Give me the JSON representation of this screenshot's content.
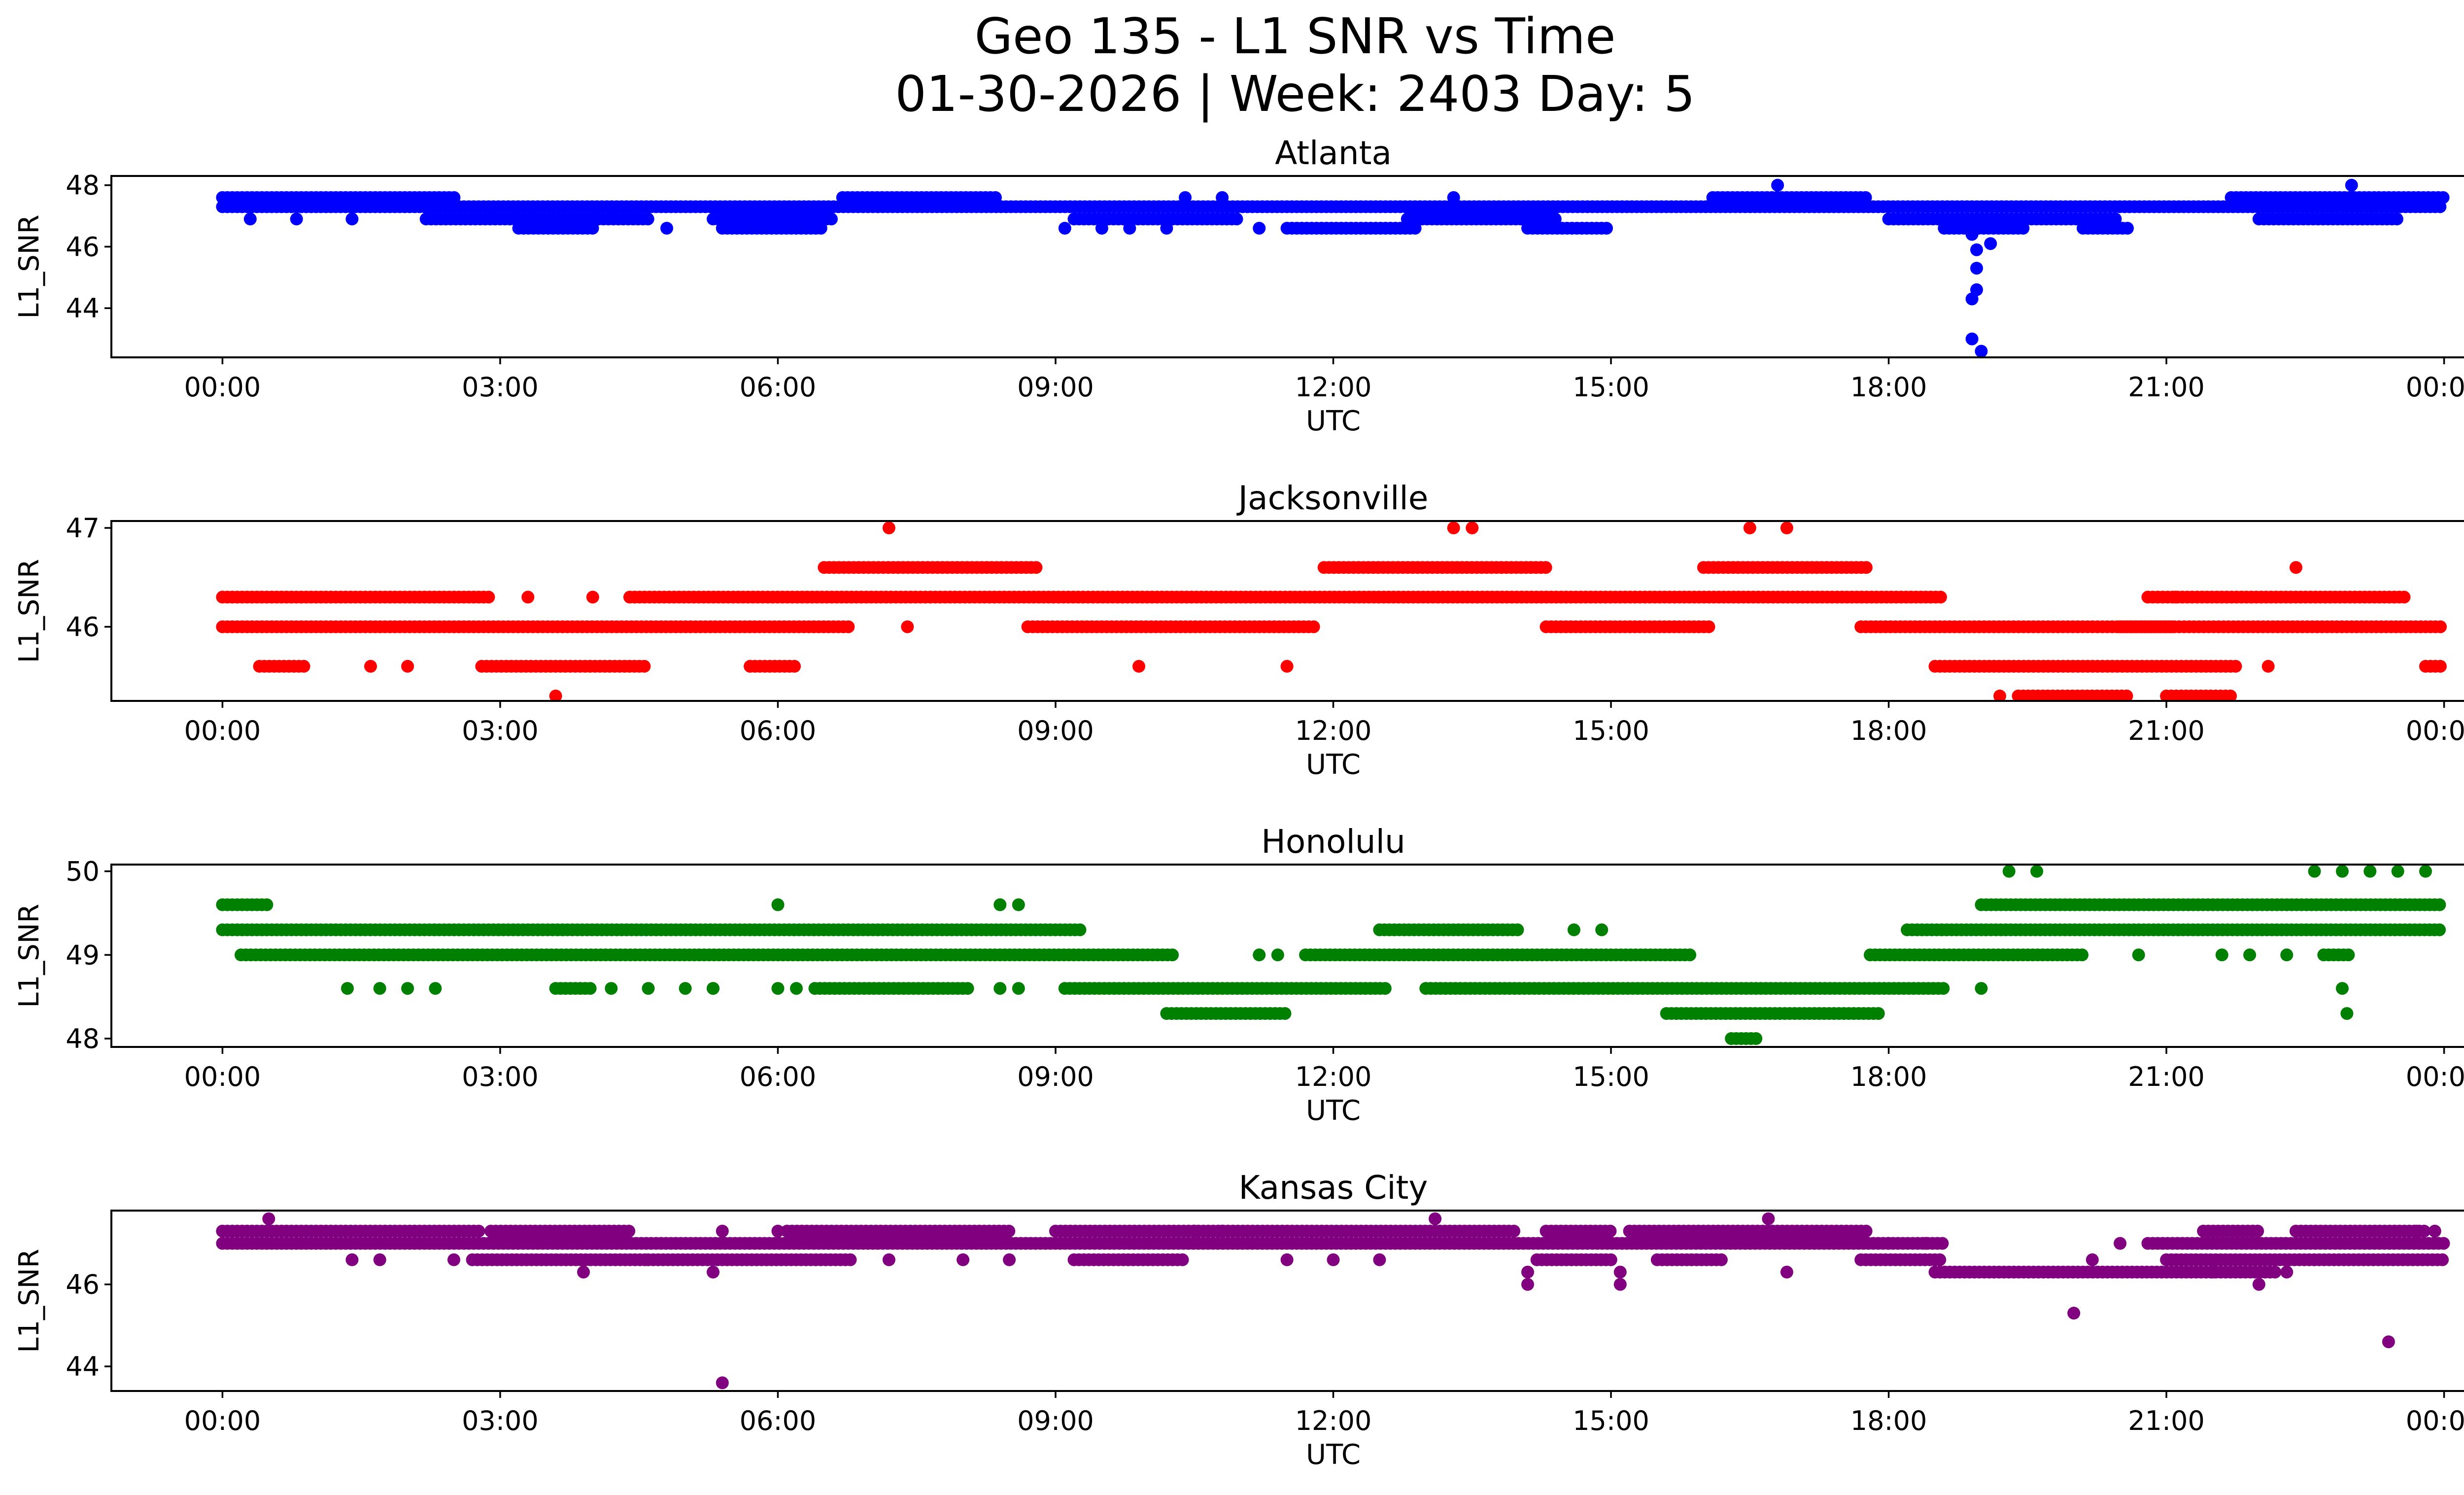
{
  "figure": {
    "title_line1": "Geo 135 - L1 SNR vs Time",
    "title_line2": "01-30-2026 | Week: 2403 Day: 5"
  },
  "chart_data": [
    {
      "type": "scatter",
      "title": "Atlanta",
      "xlabel": "UTC",
      "ylabel": "L1_SNR",
      "color": "#0000ff",
      "xlim_hours": [
        -1.2,
        25.2
      ],
      "ylim": [
        42.4,
        48.3
      ],
      "yticks": [
        44,
        46,
        48
      ],
      "xticks": [
        "00:00",
        "03:00",
        "06:00",
        "09:00",
        "12:00",
        "15:00",
        "18:00",
        "21:00",
        "00:00"
      ],
      "levels": [
        {
          "y": 47.6,
          "ranges": [
            [
              0.0,
              2.55
            ],
            [
              6.7,
              8.4
            ],
            [
              16.1,
              17.8
            ],
            [
              21.7,
              24.0
            ]
          ]
        },
        {
          "y": 47.3,
          "ranges": [
            [
              0.0,
              24.0
            ]
          ]
        },
        {
          "y": 46.9,
          "ranges": [
            [
              2.2,
              4.6
            ],
            [
              5.3,
              6.6
            ],
            [
              9.2,
              11.0
            ],
            [
              12.8,
              14.4
            ],
            [
              18.0,
              20.5
            ],
            [
              22.0,
              23.5
            ]
          ]
        },
        {
          "y": 46.6,
          "ranges": [
            [
              3.2,
              4.0
            ],
            [
              5.4,
              6.5
            ],
            [
              11.5,
              12.9
            ],
            [
              14.1,
              15.0
            ],
            [
              18.6,
              19.5
            ],
            [
              20.1,
              20.6
            ]
          ]
        }
      ],
      "points": [
        [
          0.3,
          46.9
        ],
        [
          0.8,
          46.9
        ],
        [
          1.4,
          46.9
        ],
        [
          4.8,
          46.6
        ],
        [
          9.1,
          46.6
        ],
        [
          9.5,
          46.6
        ],
        [
          9.8,
          46.6
        ],
        [
          10.2,
          46.6
        ],
        [
          10.4,
          47.6
        ],
        [
          10.8,
          47.6
        ],
        [
          11.2,
          46.6
        ],
        [
          13.3,
          47.6
        ],
        [
          16.8,
          48.0
        ],
        [
          18.9,
          46.4
        ],
        [
          18.95,
          45.9
        ],
        [
          18.95,
          45.3
        ],
        [
          18.9,
          44.3
        ],
        [
          18.95,
          44.6
        ],
        [
          18.9,
          43.0
        ],
        [
          19.0,
          42.6
        ],
        [
          19.1,
          46.1
        ],
        [
          23.0,
          48.0
        ]
      ]
    },
    {
      "type": "scatter",
      "title": "Jacksonville",
      "xlabel": "UTC",
      "ylabel": "L1_SNR",
      "color": "#ff0000",
      "xlim_hours": [
        -1.2,
        25.2
      ],
      "ylim": [
        45.25,
        47.07
      ],
      "yticks": [
        46,
        47
      ],
      "xticks": [
        "00:00",
        "03:00",
        "06:00",
        "09:00",
        "12:00",
        "15:00",
        "18:00",
        "21:00",
        "00:00"
      ],
      "levels": [
        {
          "y": 46.6,
          "ranges": [
            [
              6.5,
              8.8
            ],
            [
              11.9,
              14.3
            ],
            [
              16.0,
              17.8
            ]
          ]
        },
        {
          "y": 46.3,
          "ranges": [
            [
              0.0,
              2.9
            ],
            [
              4.4,
              18.6
            ],
            [
              20.8,
              23.6
            ]
          ]
        },
        {
          "y": 46.0,
          "ranges": [
            [
              0.0,
              6.8
            ],
            [
              8.7,
              11.8
            ],
            [
              14.3,
              16.1
            ],
            [
              17.7,
              21.1
            ],
            [
              20.5,
              24.0
            ]
          ]
        },
        {
          "y": 45.6,
          "ranges": [
            [
              0.4,
              0.9
            ],
            [
              2.8,
              4.6
            ],
            [
              5.7,
              6.2
            ],
            [
              18.5,
              21.8
            ],
            [
              23.8,
              24.0
            ]
          ]
        },
        {
          "y": 45.3,
          "ranges": [
            [
              19.4,
              20.6
            ],
            [
              21.0,
              21.7
            ]
          ]
        }
      ],
      "points": [
        [
          7.2,
          47.0
        ],
        [
          13.3,
          47.0
        ],
        [
          13.5,
          47.0
        ],
        [
          16.5,
          47.0
        ],
        [
          16.9,
          47.0
        ],
        [
          3.6,
          45.3
        ],
        [
          9.9,
          45.6
        ],
        [
          11.5,
          45.6
        ],
        [
          1.6,
          45.6
        ],
        [
          2.0,
          45.6
        ],
        [
          3.3,
          46.3
        ],
        [
          4.0,
          46.3
        ],
        [
          7.4,
          46.0
        ],
        [
          22.4,
          46.6
        ],
        [
          22.1,
          45.6
        ],
        [
          19.2,
          45.3
        ],
        [
          21.1,
          46.3
        ]
      ]
    },
    {
      "type": "scatter",
      "title": "Honolulu",
      "xlabel": "UTC",
      "ylabel": "L1_SNR",
      "color": "#008000",
      "xlim_hours": [
        -1.2,
        25.2
      ],
      "ylim": [
        47.9,
        50.08
      ],
      "yticks": [
        48,
        49,
        50
      ],
      "xticks": [
        "00:00",
        "03:00",
        "06:00",
        "09:00",
        "12:00",
        "15:00",
        "18:00",
        "21:00",
        "00:00"
      ],
      "levels": [
        {
          "y": 49.6,
          "ranges": [
            [
              0.0,
              0.5
            ],
            [
              19.0,
              24.0
            ]
          ]
        },
        {
          "y": 49.3,
          "ranges": [
            [
              0.0,
              9.3
            ],
            [
              12.5,
              14.0
            ],
            [
              18.2,
              24.0
            ]
          ]
        },
        {
          "y": 49.0,
          "ranges": [
            [
              0.2,
              10.3
            ],
            [
              11.7,
              15.9
            ],
            [
              17.8,
              20.1
            ],
            [
              22.7,
              23.0
            ]
          ]
        },
        {
          "y": 48.6,
          "ranges": [
            [
              3.6,
              4.0
            ],
            [
              6.4,
              8.1
            ],
            [
              9.1,
              12.6
            ],
            [
              13.0,
              18.6
            ]
          ]
        },
        {
          "y": 48.3,
          "ranges": [
            [
              10.2,
              11.5
            ],
            [
              15.6,
              17.9
            ]
          ]
        },
        {
          "y": 48.0,
          "ranges": [
            [
              16.3,
              16.6
            ]
          ]
        }
      ],
      "points": [
        [
          6.0,
          49.6
        ],
        [
          8.4,
          49.6
        ],
        [
          8.6,
          49.6
        ],
        [
          1.35,
          48.6
        ],
        [
          1.7,
          48.6
        ],
        [
          2.0,
          48.6
        ],
        [
          2.3,
          48.6
        ],
        [
          4.2,
          48.6
        ],
        [
          4.6,
          48.6
        ],
        [
          5.0,
          48.6
        ],
        [
          5.3,
          48.6
        ],
        [
          6.0,
          48.6
        ],
        [
          8.4,
          48.6
        ],
        [
          8.6,
          48.6
        ],
        [
          11.2,
          49.0
        ],
        [
          11.4,
          49.0
        ],
        [
          19.3,
          50.0
        ],
        [
          19.6,
          50.0
        ],
        [
          22.6,
          50.0
        ],
        [
          22.9,
          50.0
        ],
        [
          23.2,
          50.0
        ],
        [
          23.5,
          50.0
        ],
        [
          23.8,
          50.0
        ],
        [
          22.9,
          48.6
        ],
        [
          22.95,
          48.3
        ],
        [
          20.7,
          49.0
        ],
        [
          21.6,
          49.0
        ],
        [
          21.9,
          49.0
        ],
        [
          22.3,
          49.0
        ],
        [
          19.0,
          48.6
        ],
        [
          14.6,
          49.3
        ],
        [
          14.9,
          49.3
        ],
        [
          5.3,
          48.6
        ],
        [
          6.2,
          48.6
        ]
      ]
    },
    {
      "type": "scatter",
      "title": "Kansas City",
      "xlabel": "UTC",
      "ylabel": "L1_SNR",
      "color": "#800080",
      "xlim_hours": [
        -1.2,
        25.2
      ],
      "ylim": [
        43.4,
        47.8
      ],
      "yticks": [
        44,
        46
      ],
      "xticks": [
        "00:00",
        "03:00",
        "06:00",
        "09:00",
        "12:00",
        "15:00",
        "18:00",
        "21:00",
        "00:00"
      ],
      "levels": [
        {
          "y": 47.3,
          "ranges": [
            [
              0.0,
              2.8
            ],
            [
              2.9,
              4.4
            ],
            [
              6.1,
              8.5
            ],
            [
              9.0,
              14.0
            ],
            [
              14.3,
              15.0
            ],
            [
              15.2,
              17.8
            ],
            [
              21.4,
              22.0
            ],
            [
              22.4,
              23.8
            ]
          ]
        },
        {
          "y": 47.0,
          "ranges": [
            [
              0.0,
              18.6
            ],
            [
              20.8,
              24.0
            ]
          ]
        },
        {
          "y": 46.6,
          "ranges": [
            [
              2.7,
              4.6
            ],
            [
              4.6,
              6.8
            ],
            [
              9.2,
              10.4
            ],
            [
              14.2,
              15.0
            ],
            [
              15.5,
              16.2
            ],
            [
              17.7,
              18.6
            ],
            [
              21.0,
              24.0
            ]
          ]
        },
        {
          "y": 46.3,
          "ranges": [
            [
              18.5,
              22.2
            ]
          ]
        }
      ],
      "points": [
        [
          0.5,
          47.6
        ],
        [
          13.1,
          47.6
        ],
        [
          16.7,
          47.6
        ],
        [
          1.4,
          46.6
        ],
        [
          1.7,
          46.6
        ],
        [
          2.5,
          46.6
        ],
        [
          3.9,
          46.3
        ],
        [
          5.3,
          46.3
        ],
        [
          5.4,
          47.3
        ],
        [
          6.0,
          47.3
        ],
        [
          7.2,
          46.6
        ],
        [
          8.0,
          46.6
        ],
        [
          8.5,
          46.6
        ],
        [
          11.5,
          46.6
        ],
        [
          12.0,
          46.6
        ],
        [
          12.5,
          46.6
        ],
        [
          14.1,
          46.0
        ],
        [
          14.1,
          46.3
        ],
        [
          15.1,
          46.0
        ],
        [
          15.1,
          46.3
        ],
        [
          16.9,
          46.3
        ],
        [
          5.4,
          43.6
        ],
        [
          20.0,
          45.3
        ],
        [
          23.4,
          44.6
        ],
        [
          21.5,
          46.3
        ],
        [
          22.0,
          46.0
        ],
        [
          22.3,
          46.3
        ],
        [
          20.2,
          46.6
        ],
        [
          20.5,
          47.0
        ],
        [
          23.7,
          47.3
        ],
        [
          23.9,
          47.3
        ],
        [
          10.5,
          47.3
        ],
        [
          10.8,
          47.3
        ],
        [
          18.0,
          47.0
        ],
        [
          18.4,
          47.0
        ]
      ]
    }
  ]
}
